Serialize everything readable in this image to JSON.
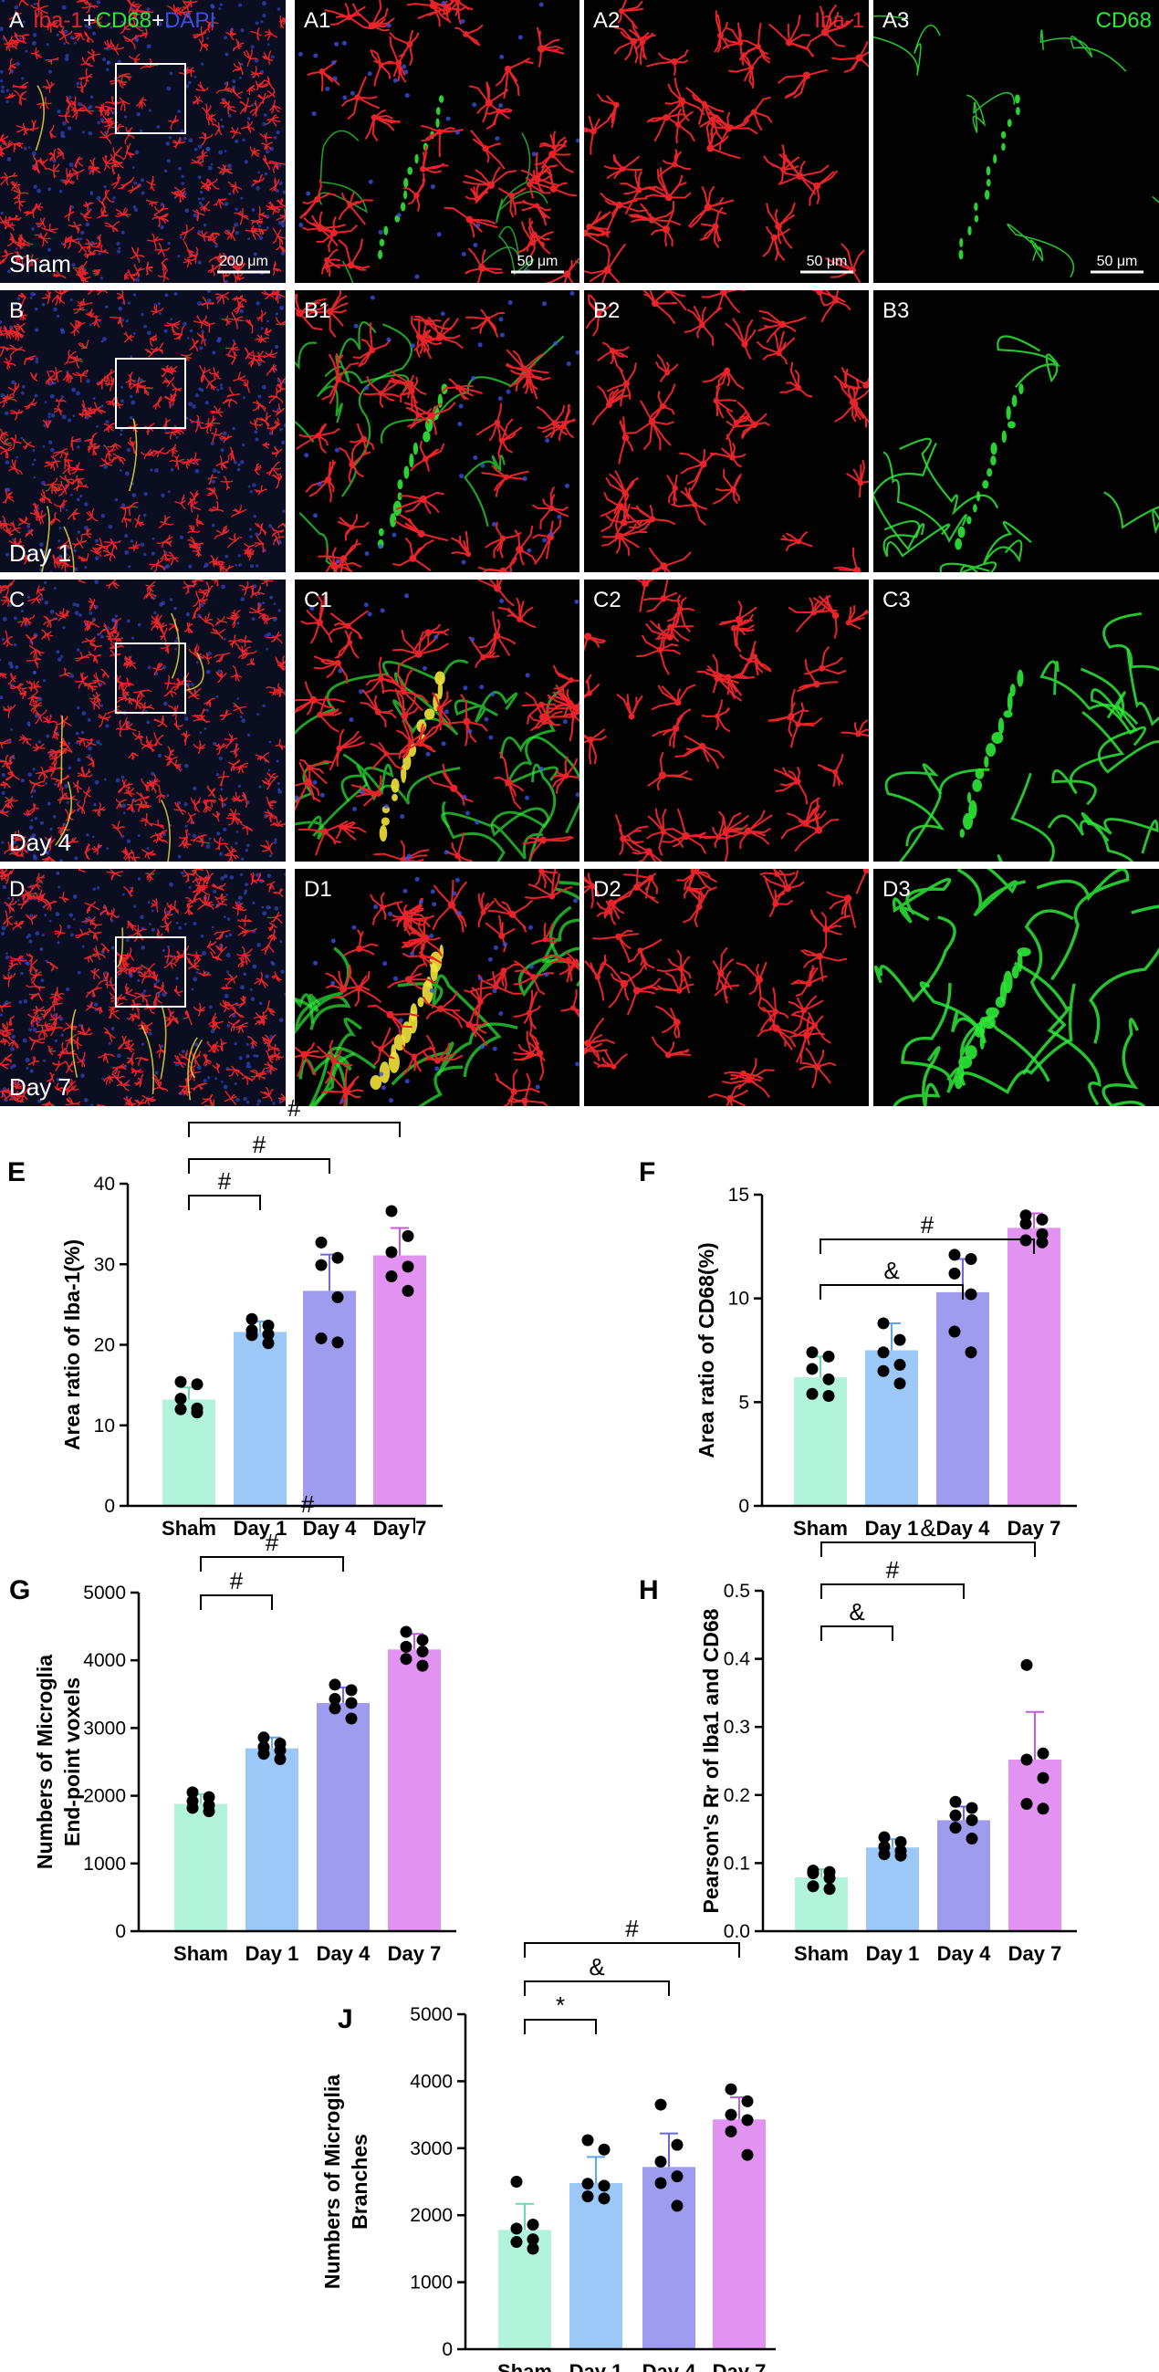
{
  "colors": {
    "background": "#ffffff",
    "micro_bg": "#020202",
    "iba1_red": "#e8242a",
    "cd68_green": "#2ee838",
    "dapi_blue": "#3a4fe0",
    "overlap_yellow": "#f2e23a",
    "bar_sham": "#b2f3dc",
    "bar_day1": "#9cc8f7",
    "bar_day4": "#9f9cf0",
    "bar_day7": "#e292f0",
    "err_sham": "#69d9b0",
    "err_day1": "#5ea6ee",
    "err_day4": "#6d67e3",
    "err_day7": "#c35ae0"
  },
  "micro": {
    "stain_legend": [
      "Iba-1",
      "+",
      "CD68",
      "+",
      "DAPI"
    ],
    "col_iba1": "Iba-1",
    "col_cd68": "CD68",
    "rows": [
      {
        "letter": "A",
        "time": "Sham",
        "panels": [
          "A",
          "A1",
          "A2",
          "A3"
        ],
        "scales": [
          "200 μm",
          "50 μm",
          "50 μm",
          "50 μm"
        ],
        "green": 0.15,
        "yellow": 0.0
      },
      {
        "letter": "B",
        "time": "Day 1",
        "panels": [
          "B",
          "B1",
          "B2",
          "B3"
        ],
        "scales": [
          "",
          "",
          "",
          ""
        ],
        "green": 0.45,
        "yellow": 0.05
      },
      {
        "letter": "C",
        "time": "Day 4",
        "panels": [
          "C",
          "C1",
          "C2",
          "C3"
        ],
        "scales": [
          "",
          "",
          "",
          ""
        ],
        "green": 0.75,
        "yellow": 0.5
      },
      {
        "letter": "D",
        "time": "Day 7",
        "panels": [
          "D",
          "D1",
          "D2",
          "D3"
        ],
        "scales": [
          "",
          "",
          "",
          ""
        ],
        "green": 1.0,
        "yellow": 0.8
      }
    ]
  },
  "chart_data": [
    {
      "panel": "E",
      "type": "bar",
      "categories": [
        "Sham",
        "Day 1",
        "Day 4",
        "Day 7"
      ],
      "ylabel": [
        "Area ratio of Iba-1(%)"
      ],
      "ylim": [
        0,
        40
      ],
      "yticks": [
        0,
        10,
        20,
        30,
        40
      ],
      "values": [
        13.2,
        21.6,
        26.7,
        31.1
      ],
      "errors": [
        1.5,
        1.3,
        4.5,
        3.4
      ],
      "points": [
        [
          15.4,
          15.1,
          13.3,
          12.1,
          12.0,
          11.6
        ],
        [
          23.2,
          22.4,
          21.8,
          21.3,
          21.2,
          20.2
        ],
        [
          32.7,
          30.8,
          29.9,
          25.9,
          20.8,
          20.3
        ],
        [
          36.6,
          33.5,
          31.5,
          29.7,
          28.5,
          26.7
        ]
      ],
      "comparisons": [
        {
          "from": 0,
          "to": 1,
          "level": 0,
          "symbol": "#"
        },
        {
          "from": 0,
          "to": 2,
          "level": 1,
          "symbol": "#"
        },
        {
          "from": 0,
          "to": 3,
          "level": 2,
          "symbol": "#"
        }
      ]
    },
    {
      "panel": "F",
      "type": "bar",
      "categories": [
        "Sham",
        "Day 1",
        "Day 4",
        "Day 7"
      ],
      "ylabel": [
        "Area ratio of CD68(%)"
      ],
      "ylim": [
        0,
        15
      ],
      "yticks": [
        0,
        5,
        10,
        15
      ],
      "values": [
        6.2,
        7.5,
        10.3,
        13.4
      ],
      "errors": [
        1.0,
        1.3,
        1.6,
        0.7
      ],
      "points": [
        [
          7.4,
          7.2,
          6.6,
          6.1,
          5.4,
          5.3
        ],
        [
          8.8,
          8.0,
          7.4,
          6.8,
          6.5,
          5.9
        ],
        [
          12.1,
          11.9,
          11.2,
          10.2,
          8.4,
          7.4
        ],
        [
          14.0,
          13.8,
          13.6,
          13.1,
          12.8,
          12.7
        ]
      ],
      "comparisons": [
        {
          "from": 0,
          "to": 2,
          "level": 0,
          "symbol": "&"
        },
        {
          "from": 0,
          "to": 3,
          "level": 1,
          "symbol": "#"
        }
      ]
    },
    {
      "panel": "G",
      "type": "bar",
      "categories": [
        "Sham",
        "Day 1",
        "Day 4",
        "Day 7"
      ],
      "ylabel": [
        "Numbers of Microglia",
        "End-point voxels"
      ],
      "ylim": [
        0,
        5000
      ],
      "yticks": [
        0,
        1000,
        2000,
        3000,
        4000,
        5000
      ],
      "values": [
        1880,
        2700,
        3370,
        4160
      ],
      "errors": [
        140,
        160,
        230,
        230
      ],
      "points": [
        [
          2050,
          1980,
          1920,
          1860,
          1820,
          1770
        ],
        [
          2860,
          2770,
          2720,
          2670,
          2620,
          2540
        ],
        [
          3640,
          3560,
          3430,
          3370,
          3290,
          3140
        ],
        [
          4420,
          4300,
          4200,
          4130,
          4020,
          3920
        ]
      ],
      "comparisons": [
        {
          "from": 0,
          "to": 1,
          "level": 0,
          "symbol": "#"
        },
        {
          "from": 0,
          "to": 2,
          "level": 1,
          "symbol": "#"
        },
        {
          "from": 0,
          "to": 3,
          "level": 2,
          "symbol": "#"
        }
      ]
    },
    {
      "panel": "H",
      "type": "bar",
      "categories": [
        "Sham",
        "Day 1",
        "Day 4",
        "Day 7"
      ],
      "ylabel": [
        "Pearson's Rr of Iba1 and CD68"
      ],
      "ylim": [
        0,
        0.5
      ],
      "yticks": [
        0.0,
        0.1,
        0.2,
        0.3,
        0.4,
        0.5
      ],
      "values": [
        0.079,
        0.123,
        0.163,
        0.252
      ],
      "errors": [
        0.012,
        0.012,
        0.02,
        0.07
      ],
      "points": [
        [
          0.089,
          0.087,
          0.085,
          0.078,
          0.066,
          0.062
        ],
        [
          0.138,
          0.131,
          0.124,
          0.118,
          0.113,
          0.111
        ],
        [
          0.19,
          0.181,
          0.17,
          0.163,
          0.152,
          0.136
        ],
        [
          0.391,
          0.261,
          0.252,
          0.225,
          0.187,
          0.18
        ]
      ],
      "comparisons": [
        {
          "from": 0,
          "to": 1,
          "level": 0,
          "symbol": "&"
        },
        {
          "from": 0,
          "to": 2,
          "level": 1,
          "symbol": "#"
        },
        {
          "from": 0,
          "to": 3,
          "level": 2,
          "symbol": "&"
        }
      ]
    },
    {
      "panel": "J",
      "type": "bar",
      "categories": [
        "Sham",
        "Day 1",
        "Day 4",
        "Day 7"
      ],
      "ylabel": [
        "Numbers of Microglia",
        "Branches"
      ],
      "ylim": [
        0,
        5000
      ],
      "yticks": [
        0,
        1000,
        2000,
        3000,
        4000,
        5000
      ],
      "values": [
        1780,
        2480,
        2720,
        3430
      ],
      "errors": [
        390,
        390,
        500,
        330
      ],
      "points": [
        [
          2500,
          1860,
          1800,
          1640,
          1600,
          1500
        ],
        [
          3120,
          2980,
          2470,
          2440,
          2280,
          2250
        ],
        [
          3650,
          3050,
          2800,
          2580,
          2480,
          2140
        ],
        [
          3880,
          3700,
          3500,
          3420,
          3250,
          2900
        ]
      ],
      "comparisons": [
        {
          "from": 0,
          "to": 1,
          "level": 0,
          "symbol": "*"
        },
        {
          "from": 0,
          "to": 2,
          "level": 1,
          "symbol": "&"
        },
        {
          "from": 0,
          "to": 3,
          "level": 2,
          "symbol": "#"
        }
      ]
    }
  ]
}
